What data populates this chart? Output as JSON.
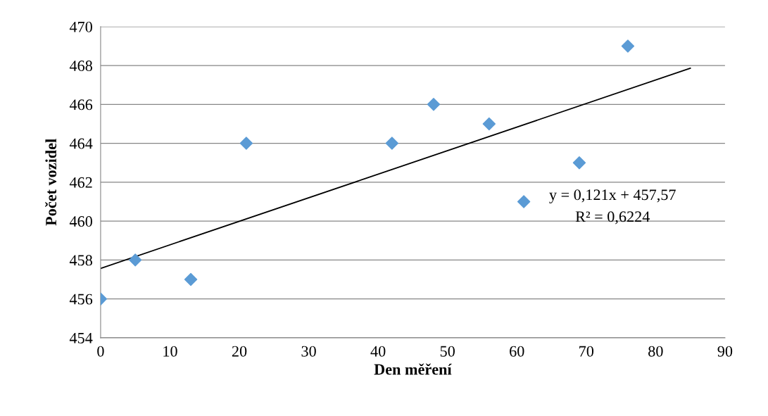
{
  "chart_data": {
    "type": "scatter",
    "xlabel": "Den měření",
    "ylabel": "Počet vozidel",
    "x": [
      0,
      5,
      13,
      21,
      42,
      48,
      56,
      61,
      69,
      76
    ],
    "series": [
      {
        "color": "#5b9bd5",
        "marker": "diamond",
        "values": [
          456,
          458,
          457,
          464,
          464,
          466,
          465,
          461,
          463,
          469
        ]
      },
      {
        "type": "line",
        "color": "#000000",
        "x": [
          0,
          85
        ],
        "values": [
          457.57,
          467.86
        ]
      }
    ],
    "annotations": [
      "y = 0,121x + 457,57",
      "R² = 0,6224"
    ],
    "xlim": [
      0,
      90
    ],
    "xticks": [
      0,
      10,
      20,
      30,
      40,
      50,
      60,
      70,
      80,
      90
    ],
    "ylim": [
      454,
      470
    ],
    "yticks": [
      454,
      456,
      458,
      460,
      462,
      464,
      466,
      468,
      470
    ],
    "grid": "y"
  }
}
